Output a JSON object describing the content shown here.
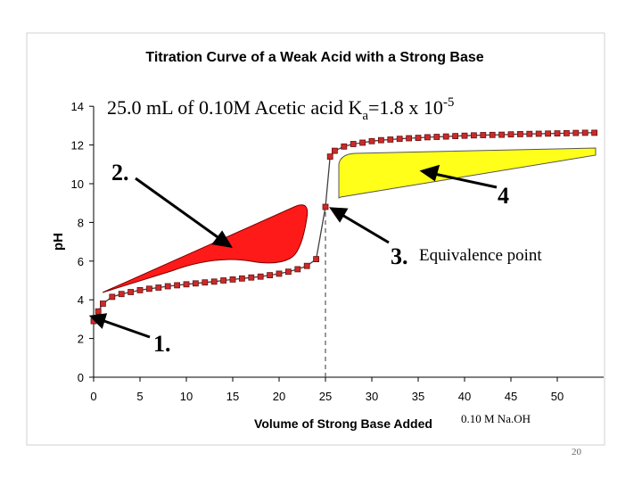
{
  "chart_data": {
    "type": "line",
    "title": "Titration Curve of a Weak Acid with a Strong Base",
    "subtitle_main": "25.0 mL of 0.10M Acetic acid K",
    "subtitle_sub": "a",
    "subtitle_mid": "=1.8 x 10",
    "subtitle_sup": "-5",
    "xlabel": "Volume of Strong Base Added",
    "ylabel": "pH",
    "xlim": [
      0,
      55
    ],
    "ylim": [
      0,
      14
    ],
    "x_ticks": [
      "0",
      "5",
      "10",
      "15",
      "20",
      "25",
      "30",
      "35",
      "40",
      "45",
      "50"
    ],
    "y_ticks": [
      "0",
      "2",
      "4",
      "6",
      "8",
      "10",
      "12",
      "14"
    ],
    "equivalence_x": 25,
    "series": [
      {
        "x": [
          0,
          0.5,
          1,
          2,
          3,
          4,
          5,
          6,
          7,
          8,
          9,
          10,
          11,
          12,
          13,
          14,
          15,
          16,
          17,
          18,
          19,
          20,
          21,
          22,
          23,
          24,
          25,
          25.5,
          26,
          27,
          28,
          29,
          30,
          31,
          32,
          33,
          34,
          35,
          36,
          37,
          38,
          39,
          40,
          41,
          42,
          43,
          44,
          45,
          46,
          47,
          48,
          49,
          50,
          51,
          52,
          53,
          54
        ],
        "values": [
          2.9,
          3.4,
          3.8,
          4.15,
          4.3,
          4.4,
          4.5,
          4.57,
          4.63,
          4.7,
          4.75,
          4.8,
          4.85,
          4.9,
          4.94,
          5.0,
          5.05,
          5.1,
          5.15,
          5.2,
          5.27,
          5.35,
          5.45,
          5.58,
          5.75,
          6.1,
          8.8,
          11.4,
          11.7,
          11.92,
          12.05,
          12.12,
          12.2,
          12.25,
          12.28,
          12.32,
          12.35,
          12.37,
          12.4,
          12.42,
          12.44,
          12.46,
          12.48,
          12.5,
          12.51,
          12.52,
          12.53,
          12.55,
          12.56,
          12.57,
          12.58,
          12.59,
          12.6,
          12.61,
          12.62,
          12.63,
          12.63
        ]
      }
    ]
  },
  "annotations": {
    "label_1": "1.",
    "label_2": "2.",
    "label_3": "3.",
    "label_3_text": "Equivalence point",
    "label_4": "4",
    "naoh_label": "0.10 M Na.OH",
    "page_number": "20"
  },
  "colors": {
    "line": "#404040",
    "marker_fill": "#cc2a2a",
    "marker_stroke": "#6a1010",
    "buffer_region": "#ff1a1a",
    "excess_base_region": "#ffff1a",
    "text": "#000000"
  }
}
